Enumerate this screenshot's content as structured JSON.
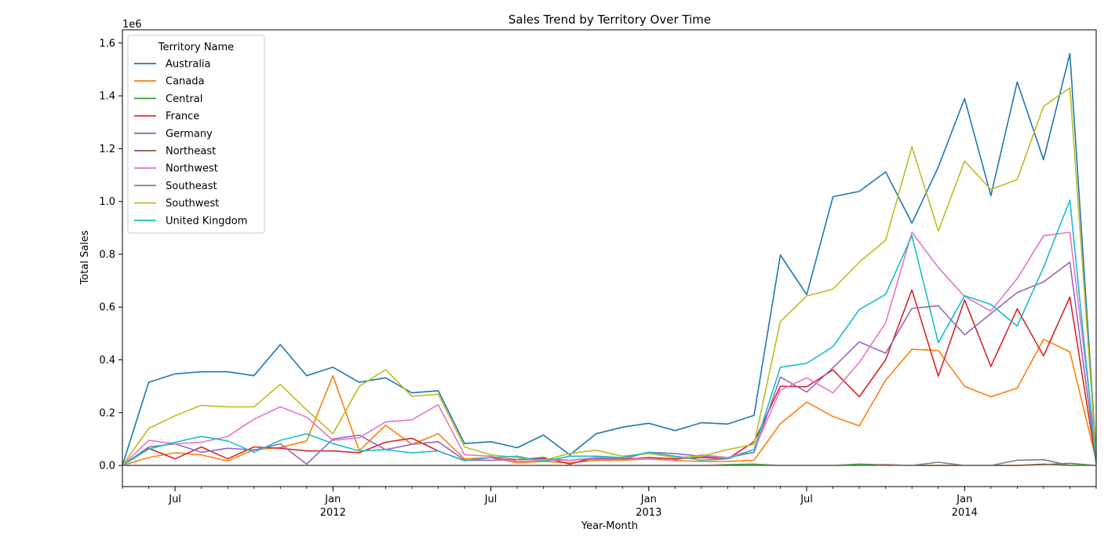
{
  "chart_data": {
    "type": "line",
    "title": "Sales Trend by Territory Over Time",
    "xlabel": "Year-Month",
    "ylabel": "Total Sales",
    "y_offset_label": "1e6",
    "ylim": [
      -0.08,
      1.65
    ],
    "grid": false,
    "legend": {
      "title": "Territory Name",
      "placement": "top-left"
    },
    "x": [
      "2011-05",
      "2011-06",
      "2011-07",
      "2011-08",
      "2011-09",
      "2011-10",
      "2011-11",
      "2011-12",
      "2012-01",
      "2012-02",
      "2012-03",
      "2012-04",
      "2012-05",
      "2012-06",
      "2012-07",
      "2012-08",
      "2012-09",
      "2012-10",
      "2012-11",
      "2012-12",
      "2013-01",
      "2013-02",
      "2013-03",
      "2013-04",
      "2013-05",
      "2013-06",
      "2013-07",
      "2013-08",
      "2013-09",
      "2013-10",
      "2013-11",
      "2013-12",
      "2014-01",
      "2014-02",
      "2014-03",
      "2014-04",
      "2014-05",
      "2014-06"
    ],
    "x_ticks": [
      {
        "x": "2011-07",
        "label": "Jul",
        "year": ""
      },
      {
        "x": "2012-01",
        "label": "Jan",
        "year": "2012"
      },
      {
        "x": "2012-07",
        "label": "Jul",
        "year": ""
      },
      {
        "x": "2013-01",
        "label": "Jan",
        "year": "2013"
      },
      {
        "x": "2013-07",
        "label": "Jul",
        "year": ""
      },
      {
        "x": "2014-01",
        "label": "Jan",
        "year": "2014"
      }
    ],
    "y_ticks": [
      0.0,
      0.2,
      0.4,
      0.6,
      0.8,
      1.0,
      1.2,
      1.4,
      1.6
    ],
    "y_tick_labels": [
      "0.0",
      "0.2",
      "0.4",
      "0.6",
      "0.8",
      "1.0",
      "1.2",
      "1.4",
      "1.6"
    ],
    "series": [
      {
        "name": "Australia",
        "color": "#1f77b4",
        "values": [
          0,
          0.315,
          0.347,
          0.355,
          0.355,
          0.34,
          0.458,
          0.34,
          0.372,
          0.315,
          0.332,
          0.275,
          0.283,
          0.083,
          0.09,
          0.067,
          0.115,
          0.04,
          0.12,
          0.145,
          0.16,
          0.132,
          0.162,
          0.157,
          0.19,
          0.797,
          0.647,
          1.018,
          1.038,
          1.112,
          0.918,
          1.13,
          1.39,
          1.022,
          1.452,
          1.158,
          1.56,
          0.04
        ]
      },
      {
        "name": "Canada",
        "color": "#ff7f0e",
        "values": [
          0,
          0.03,
          0.048,
          0.04,
          0.017,
          0.06,
          0.068,
          0.093,
          0.34,
          0.056,
          0.152,
          0.08,
          0.12,
          0.025,
          0.03,
          0.01,
          0.015,
          0.01,
          0.02,
          0.02,
          0.025,
          0.018,
          0.015,
          0.015,
          0.02,
          0.158,
          0.24,
          0.185,
          0.15,
          0.323,
          0.44,
          0.435,
          0.3,
          0.26,
          0.293,
          0.478,
          0.43,
          0.02
        ]
      },
      {
        "name": "Central",
        "color": "#2ca02c",
        "values": [
          0,
          0,
          0,
          0,
          0,
          0,
          0,
          0,
          0,
          0,
          0,
          0,
          0,
          0,
          0,
          0,
          0,
          0,
          0,
          0,
          0,
          0,
          0,
          0.003,
          0.005,
          0,
          0,
          0,
          0.005,
          0.002,
          0,
          0,
          0,
          0,
          0,
          0.003,
          0.008,
          0
        ]
      },
      {
        "name": "France",
        "color": "#d62728",
        "values": [
          0,
          0.065,
          0.025,
          0.07,
          0.025,
          0.07,
          0.065,
          0.055,
          0.055,
          0.048,
          0.088,
          0.103,
          0.055,
          0.018,
          0.03,
          0.022,
          0.03,
          0.005,
          0.03,
          0.025,
          0.03,
          0.025,
          0.03,
          0.025,
          0.09,
          0.3,
          0.298,
          0.362,
          0.26,
          0.4,
          0.665,
          0.338,
          0.627,
          0.375,
          0.593,
          0.415,
          0.638,
          0.01
        ]
      },
      {
        "name": "Germany",
        "color": "#9467bd",
        "values": [
          0,
          0.07,
          0.082,
          0.05,
          0.065,
          0.058,
          0.082,
          0.005,
          0.1,
          0.115,
          0.06,
          0.08,
          0.09,
          0.02,
          0.02,
          0.022,
          0.025,
          0.02,
          0.025,
          0.025,
          0.05,
          0.045,
          0.035,
          0.03,
          0.05,
          0.335,
          0.278,
          0.37,
          0.468,
          0.425,
          0.595,
          0.605,
          0.495,
          0.575,
          0.655,
          0.695,
          0.77,
          0.02
        ]
      },
      {
        "name": "Northeast",
        "color": "#8c564b",
        "values": [
          0,
          0,
          0,
          0,
          0,
          0,
          0,
          0,
          0,
          0,
          0,
          0,
          0,
          0,
          0,
          0,
          0,
          0,
          0,
          0,
          0,
          0,
          0,
          0,
          0,
          0,
          0,
          0,
          0,
          0.003,
          0,
          0,
          0,
          0,
          0,
          0.005,
          0,
          0
        ]
      },
      {
        "name": "Northwest",
        "color": "#e377c2",
        "values": [
          0,
          0.095,
          0.082,
          0.088,
          0.11,
          0.175,
          0.222,
          0.183,
          0.095,
          0.105,
          0.165,
          0.173,
          0.23,
          0.04,
          0.035,
          0.015,
          0.02,
          0.02,
          0.03,
          0.03,
          0.025,
          0.02,
          0.04,
          0.03,
          0.06,
          0.285,
          0.332,
          0.275,
          0.39,
          0.54,
          0.883,
          0.75,
          0.64,
          0.585,
          0.708,
          0.87,
          0.883,
          0.05
        ]
      },
      {
        "name": "Southeast",
        "color": "#7f7f7f",
        "values": [
          0,
          0,
          0,
          0,
          0,
          0,
          0,
          0,
          0,
          0,
          0,
          0,
          0,
          0,
          0,
          0,
          0,
          0,
          0,
          0,
          0,
          0,
          0,
          0,
          0,
          0,
          0,
          0,
          0,
          0,
          0,
          0.012,
          0,
          0,
          0.02,
          0.022,
          0,
          0
        ]
      },
      {
        "name": "Southwest",
        "color": "#bcbd22",
        "values": [
          0,
          0.14,
          0.188,
          0.228,
          0.222,
          0.222,
          0.307,
          0.21,
          0.12,
          0.3,
          0.363,
          0.262,
          0.27,
          0.07,
          0.04,
          0.03,
          0.02,
          0.045,
          0.058,
          0.035,
          0.045,
          0.03,
          0.035,
          0.06,
          0.08,
          0.545,
          0.642,
          0.668,
          0.77,
          0.853,
          1.207,
          0.888,
          1.153,
          1.045,
          1.083,
          1.36,
          1.43,
          0.03
        ]
      },
      {
        "name": "United Kingdom",
        "color": "#17becf",
        "values": [
          0,
          0.062,
          0.088,
          0.11,
          0.093,
          0.05,
          0.095,
          0.12,
          0.083,
          0.055,
          0.06,
          0.048,
          0.055,
          0.018,
          0.03,
          0.035,
          0.015,
          0.035,
          0.035,
          0.03,
          0.05,
          0.035,
          0.02,
          0.025,
          0.06,
          0.372,
          0.387,
          0.45,
          0.59,
          0.648,
          0.87,
          0.465,
          0.643,
          0.61,
          0.528,
          0.75,
          1.005,
          0.01
        ]
      }
    ]
  }
}
